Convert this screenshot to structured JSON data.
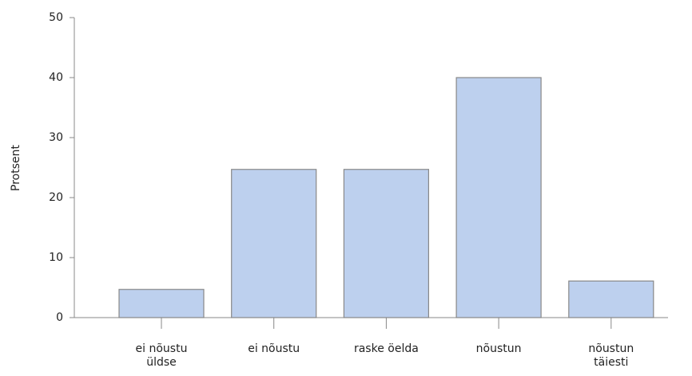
{
  "chart_data": {
    "type": "bar",
    "ylabel": "Protsent",
    "categories": [
      "ei nõustu üldse",
      "ei nõustu",
      "raske öelda",
      "nõustun",
      "nõustun täiesti"
    ],
    "values": [
      4.7,
      24.7,
      24.7,
      40,
      6.1
    ],
    "color": "#bdd0ee",
    "ylim": [
      0,
      50
    ],
    "yticks": [
      0,
      10,
      20,
      30,
      40,
      50
    ],
    "grid": false
  }
}
